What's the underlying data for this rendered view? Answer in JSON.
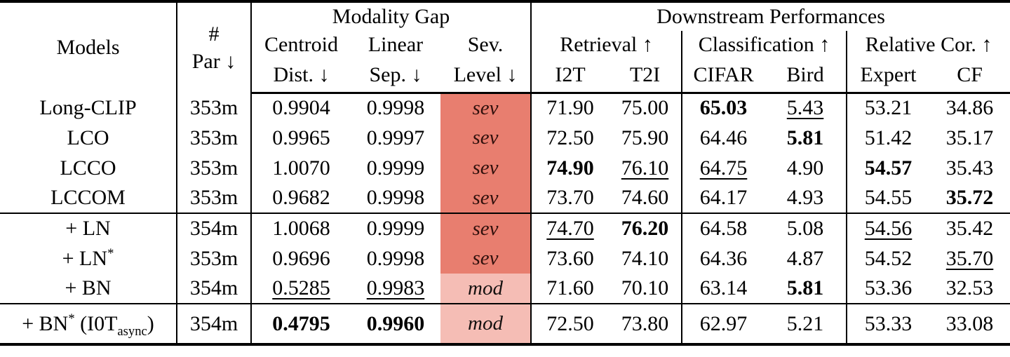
{
  "table": {
    "groups_header": {
      "modality_gap": "Modality Gap",
      "downstream": "Downstream Performances"
    },
    "headers": {
      "models": "Models",
      "par_line1": "#",
      "par_line2": "Par ↓",
      "centroid_line1": "Centroid",
      "centroid_line2": "Dist. ↓",
      "linear_line1": "Linear",
      "linear_line2": "Sep. ↓",
      "sev_line1": "Sev.",
      "sev_line2": "Level ↓",
      "retrieval": "Retrieval ↑",
      "classification": "Classification ↑",
      "relative_cor": "Relative Cor. ↑",
      "i2t": "I2T",
      "t2i": "T2I",
      "cifar": "CIFAR",
      "bird": "Bird",
      "expert": "Expert",
      "cf": "CF"
    },
    "severity_labels": {
      "sev": "sev",
      "mod": "mod"
    },
    "severity_styles": {
      "sev": {
        "bg": "#E87E6F",
        "fg": "#30100C"
      },
      "mod": {
        "bg": "#F5BDB5",
        "fg": "#151110"
      }
    },
    "row_groups": [
      {
        "rows": [
          {
            "model": [
              {
                "t": "Long-CLIP"
              }
            ],
            "par": "353m",
            "centroid": {
              "v": "0.9904"
            },
            "linear": {
              "v": "0.9998"
            },
            "severity": "sev",
            "i2t": {
              "v": "71.90"
            },
            "t2i": {
              "v": "75.00"
            },
            "cifar": {
              "v": "65.03",
              "b": true
            },
            "bird": {
              "v": "5.43",
              "u": true
            },
            "expert": {
              "v": "53.21"
            },
            "cf": {
              "v": "34.86"
            }
          },
          {
            "model": [
              {
                "t": "LCO"
              }
            ],
            "par": "353m",
            "centroid": {
              "v": "0.9965"
            },
            "linear": {
              "v": "0.9997"
            },
            "severity": "sev",
            "i2t": {
              "v": "72.50"
            },
            "t2i": {
              "v": "75.90"
            },
            "cifar": {
              "v": "64.46"
            },
            "bird": {
              "v": "5.81",
              "b": true
            },
            "expert": {
              "v": "51.42"
            },
            "cf": {
              "v": "35.17"
            }
          },
          {
            "model": [
              {
                "t": "LCCO"
              }
            ],
            "par": "353m",
            "centroid": {
              "v": "1.0070"
            },
            "linear": {
              "v": "0.9999"
            },
            "severity": "sev",
            "i2t": {
              "v": "74.90",
              "b": true
            },
            "t2i": {
              "v": "76.10",
              "u": true
            },
            "cifar": {
              "v": "64.75",
              "u": true
            },
            "bird": {
              "v": "4.90"
            },
            "expert": {
              "v": "54.57",
              "b": true
            },
            "cf": {
              "v": "35.43"
            }
          },
          {
            "model": [
              {
                "t": "LCCOM"
              }
            ],
            "par": "353m",
            "centroid": {
              "v": "0.9682"
            },
            "linear": {
              "v": "0.9998"
            },
            "severity": "sev",
            "i2t": {
              "v": "73.70"
            },
            "t2i": {
              "v": "74.60"
            },
            "cifar": {
              "v": "64.17"
            },
            "bird": {
              "v": "4.93"
            },
            "expert": {
              "v": "54.55"
            },
            "cf": {
              "v": "35.72",
              "b": true
            }
          }
        ]
      },
      {
        "rows": [
          {
            "model": [
              {
                "t": "+ LN"
              }
            ],
            "par": "354m",
            "centroid": {
              "v": "1.0068"
            },
            "linear": {
              "v": "0.9999"
            },
            "severity": "sev",
            "i2t": {
              "v": "74.70",
              "u": true
            },
            "t2i": {
              "v": "76.20",
              "b": true
            },
            "cifar": {
              "v": "64.58"
            },
            "bird": {
              "v": "5.08"
            },
            "expert": {
              "v": "54.56",
              "u": true
            },
            "cf": {
              "v": "35.42"
            }
          },
          {
            "model": [
              {
                "t": "+ LN"
              },
              {
                "t": "*",
                "sup": true
              }
            ],
            "par": "353m",
            "centroid": {
              "v": "0.9696"
            },
            "linear": {
              "v": "0.9998"
            },
            "severity": "sev",
            "i2t": {
              "v": "73.60"
            },
            "t2i": {
              "v": "74.10"
            },
            "cifar": {
              "v": "64.36"
            },
            "bird": {
              "v": "4.87"
            },
            "expert": {
              "v": "54.52"
            },
            "cf": {
              "v": "35.70",
              "u": true
            }
          },
          {
            "model": [
              {
                "t": "+ BN"
              }
            ],
            "par": "354m",
            "centroid": {
              "v": "0.5285",
              "u": true
            },
            "linear": {
              "v": "0.9983",
              "u": true
            },
            "severity": "mod",
            "i2t": {
              "v": "71.60"
            },
            "t2i": {
              "v": "70.10"
            },
            "cifar": {
              "v": "63.14"
            },
            "bird": {
              "v": "5.81",
              "b": true
            },
            "expert": {
              "v": "53.36"
            },
            "cf": {
              "v": "32.53"
            }
          }
        ]
      },
      {
        "rows": [
          {
            "model": [
              {
                "t": "+ BN"
              },
              {
                "t": "*",
                "sup": true
              },
              {
                "t": " (I0T"
              },
              {
                "t": "async",
                "sub": true
              },
              {
                "t": ")"
              }
            ],
            "par": "354m",
            "centroid": {
              "v": "0.4795",
              "b": true
            },
            "linear": {
              "v": "0.9960",
              "b": true
            },
            "severity": "mod",
            "i2t": {
              "v": "72.50"
            },
            "t2i": {
              "v": "73.80"
            },
            "cifar": {
              "v": "62.97"
            },
            "bird": {
              "v": "5.21"
            },
            "expert": {
              "v": "53.33"
            },
            "cf": {
              "v": "33.08"
            }
          }
        ]
      }
    ]
  }
}
